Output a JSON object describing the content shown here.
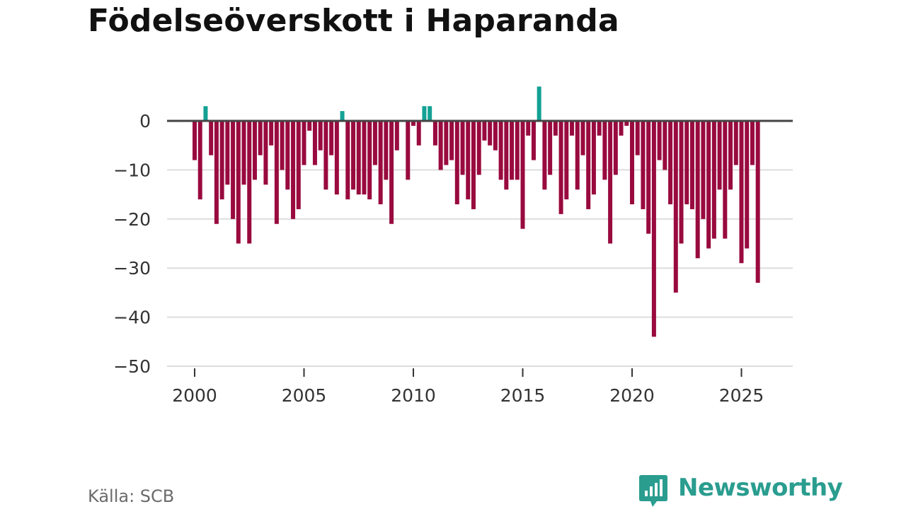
{
  "title": "Födelseöverskott i Haparanda",
  "source": "Källa: SCB",
  "brand": "Newsworthy",
  "colors": {
    "positive": "#13a195",
    "negative": "#990a3e",
    "zero_line": "#444444",
    "grid": "#dddddd",
    "brand": "#2a9d8f"
  },
  "chart_data": {
    "type": "bar",
    "title": "Födelseöverskott i Haparanda",
    "xlabel": "",
    "ylabel": "",
    "x_start": 2000.0,
    "x_step": 0.25,
    "xlim": [
      1999.6,
      2027.6
    ],
    "ylim": [
      -50,
      7
    ],
    "y_ticks": [
      0,
      -10,
      -20,
      -30,
      -40,
      -50
    ],
    "y_tick_labels": [
      "0",
      "−10",
      "−20",
      "−30",
      "−40",
      "−50"
    ],
    "x_ticks": [
      2000,
      2005,
      2010,
      2015,
      2020,
      2025
    ],
    "x_tick_labels": [
      "2000",
      "2005",
      "2010",
      "2015",
      "2020",
      "2025"
    ],
    "values": [
      -8,
      -16,
      3,
      -7,
      -21,
      -16,
      -13,
      -20,
      -25,
      -13,
      -25,
      -12,
      -7,
      -13,
      -5,
      -21,
      -10,
      -14,
      -20,
      -18,
      -9,
      -2,
      -9,
      -6,
      -14,
      -7,
      -15,
      2,
      -16,
      -14,
      -15,
      -15,
      -16,
      -9,
      -17,
      -12,
      -21,
      -6,
      0,
      -12,
      -1,
      -5,
      3,
      3,
      -5,
      -10,
      -9,
      -8,
      -17,
      -11,
      -16,
      -18,
      -11,
      -4,
      -5,
      -6,
      -12,
      -14,
      -12,
      -12,
      -22,
      -3,
      -8,
      7,
      -14,
      -11,
      -3,
      -19,
      -16,
      -3,
      -14,
      -7,
      -18,
      -15,
      -3,
      -12,
      -25,
      -11,
      -3,
      -1,
      -17,
      -7,
      -18,
      -23,
      -44,
      -8,
      -10,
      -17,
      -35,
      -25,
      -17,
      -18,
      -28,
      -20,
      -26,
      -24,
      -14,
      -24,
      -14,
      -9,
      -29,
      -26,
      -9,
      -33
    ]
  }
}
